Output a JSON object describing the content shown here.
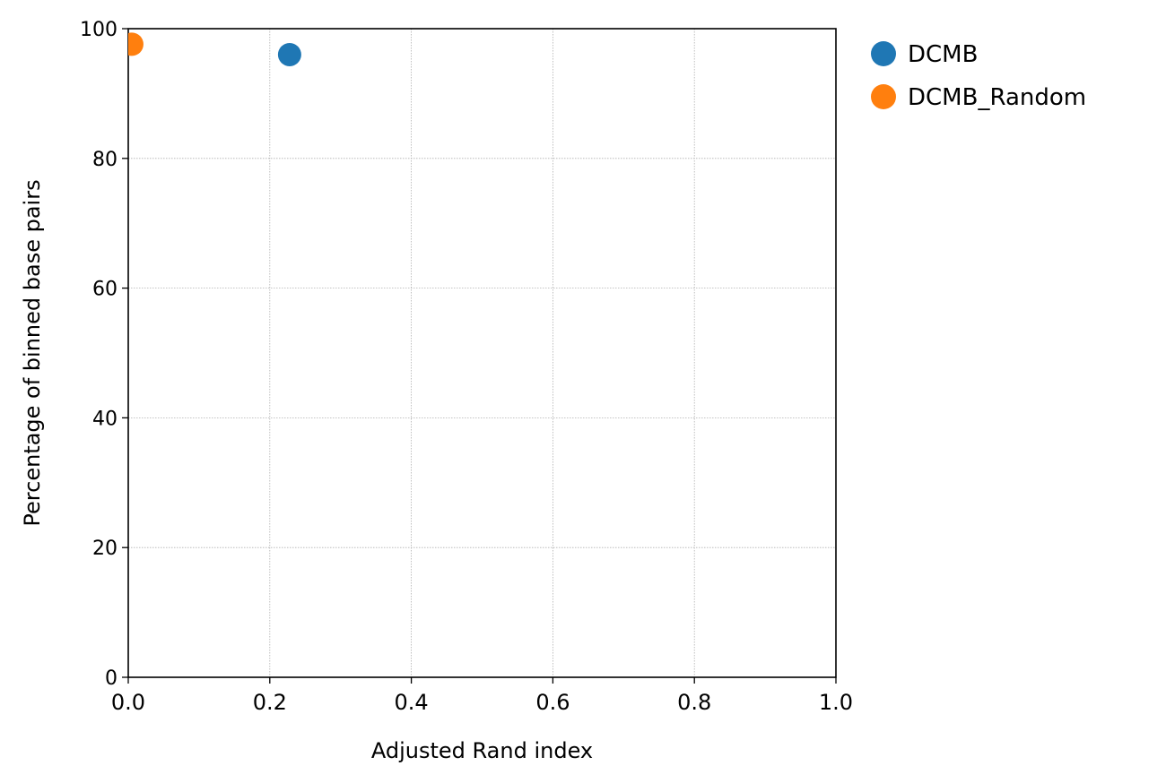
{
  "chart_data": {
    "type": "scatter",
    "title": "",
    "xlabel": "Adjusted Rand index",
    "ylabel": "Percentage of binned base pairs",
    "xlim": [
      0.0,
      1.0
    ],
    "ylim": [
      0,
      100
    ],
    "x_ticks": [
      "0.0",
      "0.2",
      "0.4",
      "0.6",
      "0.8",
      "1.0"
    ],
    "y_ticks": [
      "0",
      "20",
      "40",
      "60",
      "80",
      "100"
    ],
    "grid": true,
    "legend_position": "outside-right-top",
    "series": [
      {
        "name": "DCMB",
        "color": "#1f77b4",
        "points": [
          {
            "x": 0.228,
            "y": 96.0
          }
        ]
      },
      {
        "name": "DCMB_Random",
        "color": "#ff7f0e",
        "points": [
          {
            "x": 0.005,
            "y": 97.6
          }
        ]
      }
    ]
  }
}
